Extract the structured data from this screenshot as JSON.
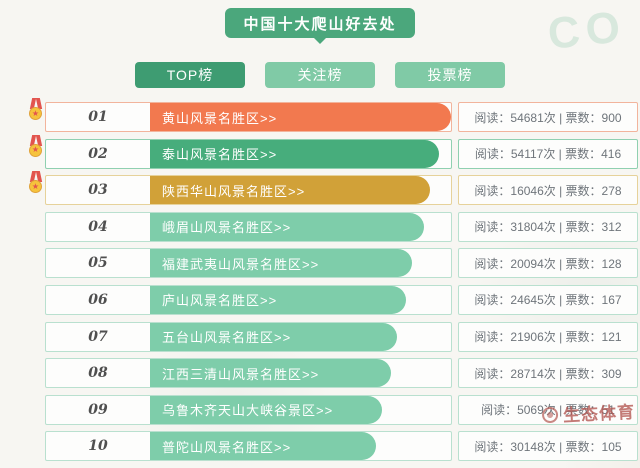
{
  "header": {
    "title": "中国十大爬山好去处",
    "bubble_color": "#4ba77c"
  },
  "decor": {
    "co_text": "CO"
  },
  "tabs": [
    {
      "key": "top",
      "label": "TOP榜",
      "active": true
    },
    {
      "key": "follow",
      "label": "关注榜",
      "active": false
    },
    {
      "key": "vote",
      "label": "投票榜",
      "active": false
    }
  ],
  "colors": {
    "tab_active": "#3e9c72",
    "tab_inactive": "#80caa6"
  },
  "icons": {
    "medal_star": "★"
  },
  "list": {
    "read_label": "阅读",
    "read_suffix": "次",
    "votes_label": "票数",
    "separator": "|",
    "colon": "：",
    "items": [
      {
        "rank": "01",
        "name": "黄山风景名胜区>>",
        "reads": "54681",
        "votes": "900",
        "bar_color": "#f2794f",
        "border_color": "#f2b49c",
        "bar_pct": 100,
        "medal": true
      },
      {
        "rank": "02",
        "name": "泰山风景名胜区>>",
        "reads": "54117",
        "votes": "416",
        "bar_color": "#47ad7c",
        "border_color": "#8fd0b0",
        "bar_pct": 96,
        "medal": true
      },
      {
        "rank": "03",
        "name": "陕西华山风景名胜区>>",
        "reads": "16046",
        "votes": "278",
        "bar_color": "#d1a138",
        "border_color": "#e6d29a",
        "bar_pct": 93,
        "medal": true
      },
      {
        "rank": "04",
        "name": "峨眉山风景名胜区>>",
        "reads": "31804",
        "votes": "312",
        "bar_color": "#7ecdaa",
        "border_color": "#b9e0cf",
        "bar_pct": 91,
        "medal": false
      },
      {
        "rank": "05",
        "name": "福建武夷山风景名胜区>>",
        "reads": "20094",
        "votes": "128",
        "bar_color": "#7ecdaa",
        "border_color": "#b9e0cf",
        "bar_pct": 87,
        "medal": false
      },
      {
        "rank": "06",
        "name": "庐山风景名胜区>>",
        "reads": "24645",
        "votes": "167",
        "bar_color": "#7ecdaa",
        "border_color": "#b9e0cf",
        "bar_pct": 85,
        "medal": false
      },
      {
        "rank": "07",
        "name": "五台山风景名胜区>>",
        "reads": "21906",
        "votes": "121",
        "bar_color": "#7ecdaa",
        "border_color": "#b9e0cf",
        "bar_pct": 82,
        "medal": false
      },
      {
        "rank": "08",
        "name": "江西三清山风景名胜区>>",
        "reads": "28714",
        "votes": "309",
        "bar_color": "#7ecdaa",
        "border_color": "#b9e0cf",
        "bar_pct": 80,
        "medal": false
      },
      {
        "rank": "09",
        "name": "乌鲁木齐天山大峡谷景区>>",
        "reads": "5069",
        "votes": "51",
        "bar_color": "#7ecdaa",
        "border_color": "#b9e0cf",
        "bar_pct": 77,
        "medal": false
      },
      {
        "rank": "10",
        "name": "普陀山风景名胜区>>",
        "reads": "30148",
        "votes": "105",
        "bar_color": "#7ecdaa",
        "border_color": "#b9e0cf",
        "bar_pct": 75,
        "medal": false
      }
    ]
  },
  "watermark": {
    "text": "生态体育"
  }
}
